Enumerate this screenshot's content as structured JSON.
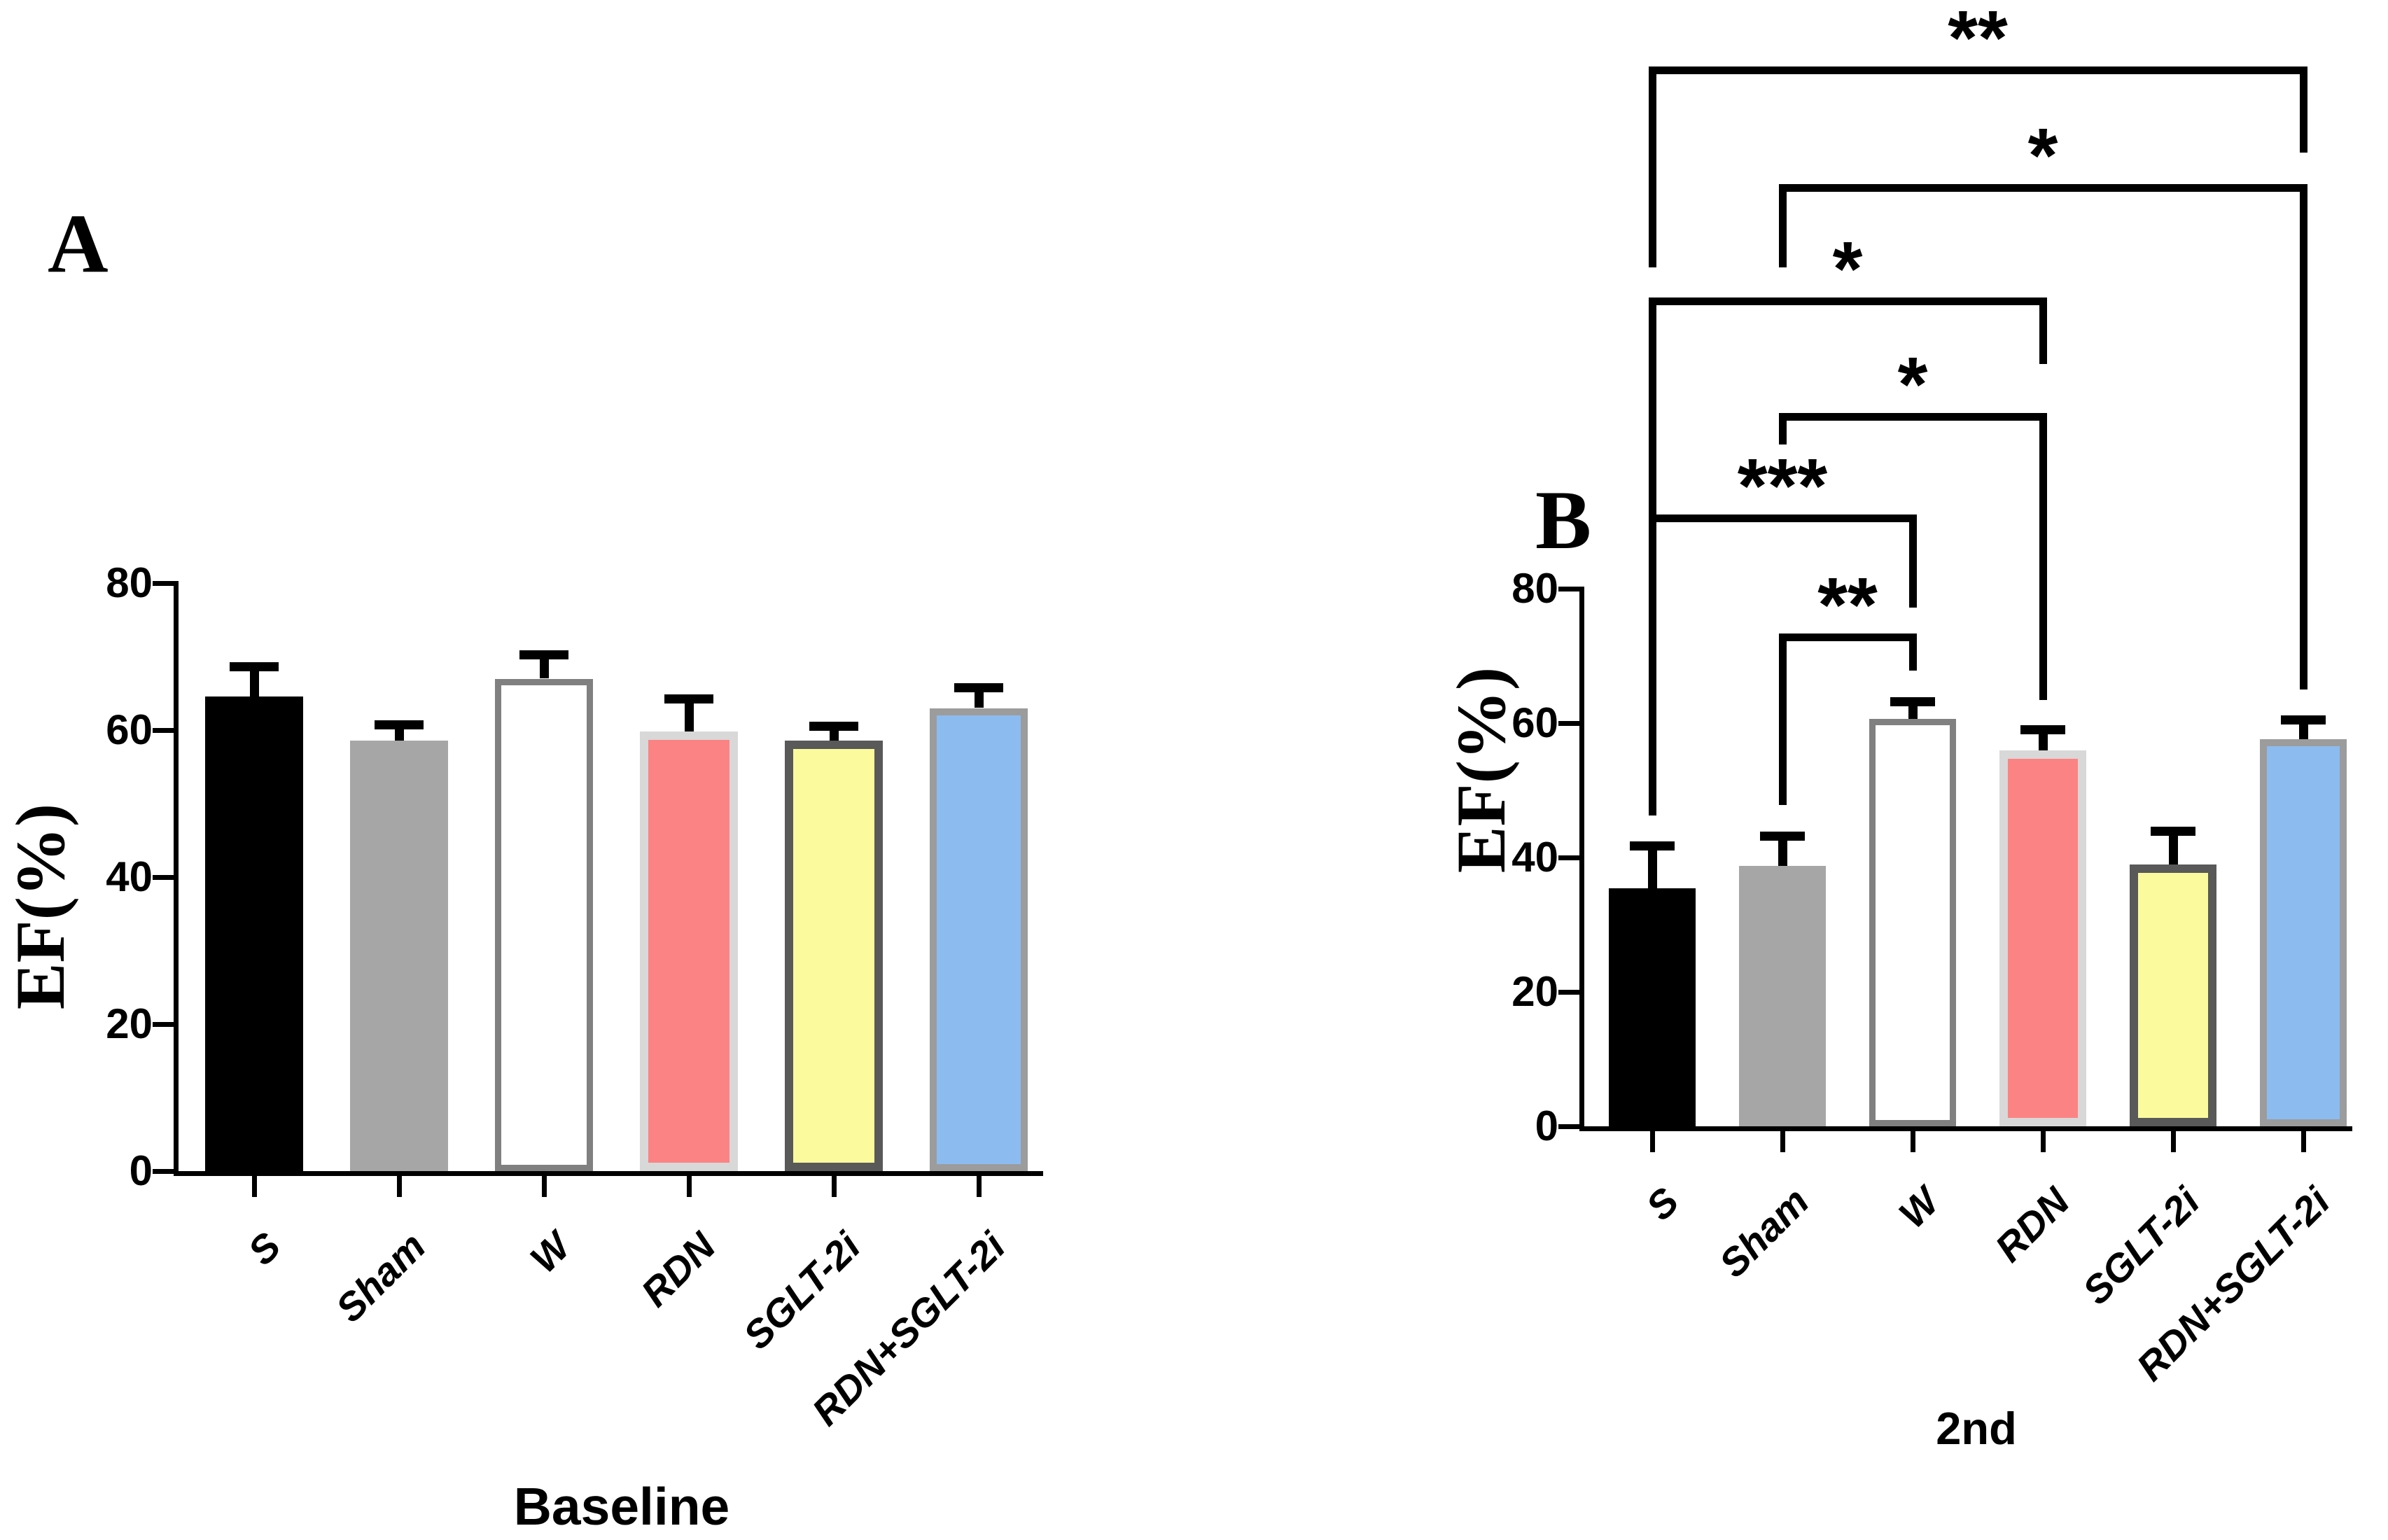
{
  "figure_caption_a": "Baseline",
  "figure_caption_b": "2nd",
  "chart_data": [
    {
      "type": "bar",
      "panel_label": "A",
      "title": "Baseline",
      "xlabel": "",
      "ylabel": "EF(%)",
      "ylim": [
        0,
        80
      ],
      "yticks": [
        0,
        20,
        40,
        60,
        80
      ],
      "grid": false,
      "legend": "none",
      "categories": [
        "S",
        "Sham",
        "W",
        "RDN",
        "SGLT-2i",
        "RDN+SGLT-2i"
      ],
      "values": [
        64.6,
        58.6,
        67.0,
        59.8,
        58.6,
        63.0
      ],
      "errors_plus": [
        4.1,
        2.2,
        3.3,
        4.5,
        2.0,
        2.8
      ],
      "bar_fill": [
        "#000000",
        "#A6A6A6",
        "#FFFFFF",
        "#FC8383",
        "#FBFB9D",
        "#8CBCEF"
      ],
      "bar_border_color": [
        "#000000",
        "#A6A6A6",
        "#808080",
        "#D8D8D8",
        "#595959",
        "#9C9C9C"
      ],
      "bar_border_width": [
        0,
        0,
        9,
        12,
        12,
        10
      ],
      "error_color": "#000000",
      "brackets": []
    },
    {
      "type": "bar",
      "panel_label": "B",
      "title": "2nd",
      "xlabel": "",
      "ylabel": "EF(%)",
      "ylim": [
        0,
        80
      ],
      "yticks": [
        0,
        20,
        40,
        60,
        80
      ],
      "grid": false,
      "legend": "none",
      "categories": [
        "S",
        "Sham",
        "W",
        "RDN",
        "SGLT-2i",
        "RDN+SGLT-2i"
      ],
      "values": [
        35.4,
        38.8,
        60.6,
        55.9,
        39.0,
        57.6
      ],
      "errors_plus": [
        6.4,
        4.4,
        2.6,
        3.2,
        5.0,
        2.9
      ],
      "bar_fill": [
        "#000000",
        "#A6A6A6",
        "#FFFFFF",
        "#FC8383",
        "#FBFB9D",
        "#8CBCEF"
      ],
      "bar_border_color": [
        "#000000",
        "#A6A6A6",
        "#808080",
        "#D8D8D8",
        "#595959",
        "#9C9C9C"
      ],
      "bar_border_width": [
        0,
        0,
        9,
        12,
        12,
        10
      ],
      "error_color": "#000000",
      "brackets": [
        {
          "group1": "S",
          "group2": "RDN+SGLT-2i",
          "label": "**"
        },
        {
          "group1": "Sham",
          "group2": "RDN+SGLT-2i",
          "label": "*"
        },
        {
          "group1": "S",
          "group2": "RDN",
          "label": "*"
        },
        {
          "group1": "Sham",
          "group2": "RDN",
          "label": "*"
        },
        {
          "group1": "S",
          "group2": "W",
          "label": "***"
        },
        {
          "group1": "Sham",
          "group2": "W",
          "label": "**"
        }
      ]
    }
  ]
}
